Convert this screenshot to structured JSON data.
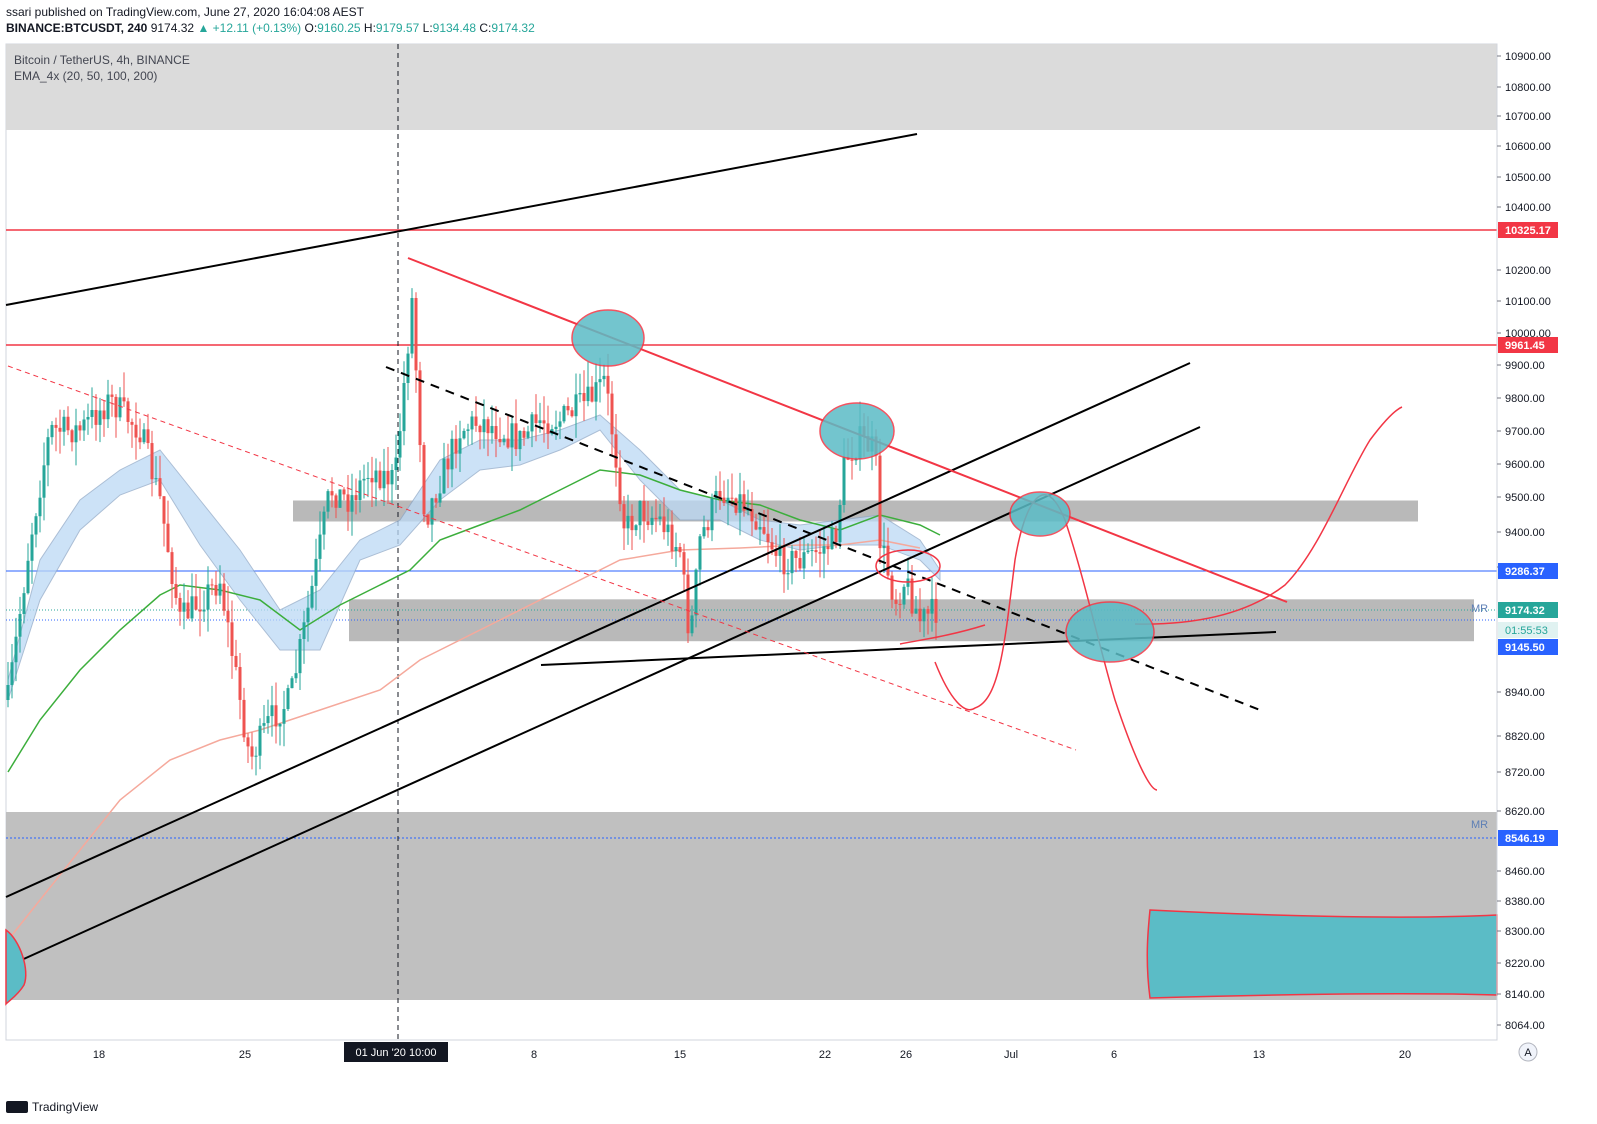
{
  "header": {
    "publisher": "ssari published on TradingView.com, June 27, 2020 16:04:08 AEST",
    "symbol": "BINANCE:BTCUSDT, 240",
    "last": "9174.32",
    "change": "▲ +12.11 (+0.13%)",
    "o_label": "O:",
    "o_value": "9160.25",
    "h_label": "H:",
    "h_value": "9179.57",
    "l_label": "L:",
    "l_value": "9134.48",
    "c_label": "C:",
    "c_value": "9174.32"
  },
  "legend": {
    "title": "Bitcoin / TetherUS, 4h, BINANCE",
    "indicator": "EMA_4x (20, 50, 100, 200)"
  },
  "footer": {
    "brand": "TradingView"
  },
  "colors": {
    "red": "#f23645",
    "blue": "#2962ff",
    "teal": "#5bbcc6",
    "green": "#3cae3c",
    "salmon": "#f5a99c",
    "band": "#bcd9f5",
    "bull": "#26a69a",
    "bear": "#ef5350"
  },
  "chart_data": {
    "type": "candlestick",
    "y_range": [
      8000,
      10960
    ],
    "y_ticks": [
      10900,
      10800,
      10700,
      10600,
      10500,
      10400,
      10200,
      10100,
      10000,
      9900,
      9800,
      9700,
      9600,
      9500,
      9400,
      9300,
      8940,
      8820,
      8720,
      8620,
      8460,
      8380,
      8300,
      8220,
      8140,
      8064
    ],
    "y_tick_labels": [
      "10900.00",
      "10800.00",
      "10700.00",
      "10600.00",
      "10500.00",
      "10400.00",
      "10200.00",
      "10100.00",
      "10000.00",
      "9900.00",
      "9800.00",
      "9700.00",
      "9600.00",
      "9500.00",
      "9400.00",
      "9300.00",
      "8940.00",
      "8820.00",
      "8720.00",
      "8620.00",
      "8460.00",
      "8380.00",
      "8300.00",
      "8220.00",
      "8140.00",
      "8064.00"
    ],
    "x_ticks": [
      "18",
      "25",
      "8",
      "15",
      "22",
      "26",
      "Jul",
      "6",
      "13",
      "20"
    ],
    "x_tick_dates": [
      "2020-05-18",
      "2020-05-25",
      "2020-06-08",
      "2020-06-15",
      "2020-06-22",
      "2020-06-26",
      "2020-07-01",
      "2020-07-06",
      "2020-07-13",
      "2020-07-20"
    ],
    "crosshair_label": "01 Jun '20   10:00",
    "crosshair_date": "2020-06-01T10:00",
    "price_labels": [
      {
        "value": 10325.17,
        "text": "10325.17",
        "color": "#f23645"
      },
      {
        "value": 9961.45,
        "text": "9961.45",
        "color": "#f23645"
      },
      {
        "value": 9286.37,
        "text": "9286.37",
        "color": "#2962ff"
      },
      {
        "value": 9174.32,
        "text": "9174.32",
        "color": "#26a69a"
      },
      {
        "value": 9145.5,
        "text": "9145.50",
        "color": "#2962ff"
      },
      {
        "value": 8546.19,
        "text": "8546.19",
        "color": "#2962ff"
      }
    ],
    "countdown": "01:55:53",
    "mr_labels": [
      "MR",
      "MR"
    ],
    "horizontal_levels": [
      10325.17,
      9961.45,
      9286.37,
      8546.19
    ],
    "zones": [
      {
        "from": 10650,
        "to": 10960
      },
      {
        "from": 9430,
        "to": 9490
      },
      {
        "from": 9150,
        "to": 9205
      },
      {
        "from": 8120,
        "to": 8620
      }
    ],
    "axis_corner": "A"
  }
}
